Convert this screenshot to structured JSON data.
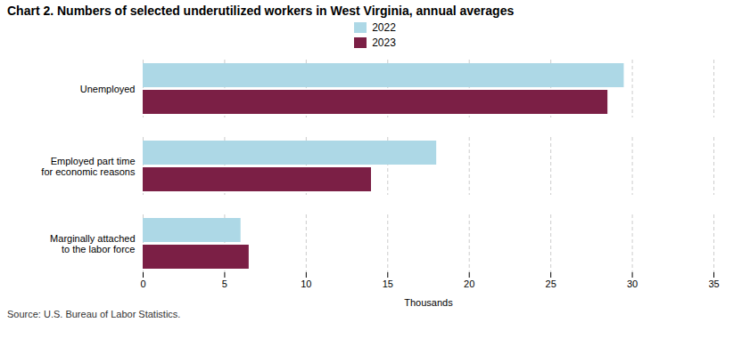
{
  "chart_data": {
    "type": "bar",
    "orientation": "horizontal",
    "title": "Chart 2. Numbers of selected underutilized workers in West Virginia, annual averages",
    "categories": [
      "Marginally attached\nto the labor force",
      "Employed part time\nfor economic reasons",
      "Unemployed"
    ],
    "series": [
      {
        "name": "2022",
        "color": "#add8e6",
        "values": [
          6.0,
          18.0,
          29.5
        ]
      },
      {
        "name": "2023",
        "color": "#7b1f45",
        "values": [
          6.5,
          14.0,
          28.5
        ]
      }
    ],
    "xlim": [
      0,
      35
    ],
    "xticks": [
      0,
      5,
      10,
      15,
      20,
      25,
      30,
      35
    ],
    "xlabel": "Thousands",
    "grid": true,
    "legend": "top",
    "source": "Source: U.S. Bureau of Labor Statistics."
  }
}
